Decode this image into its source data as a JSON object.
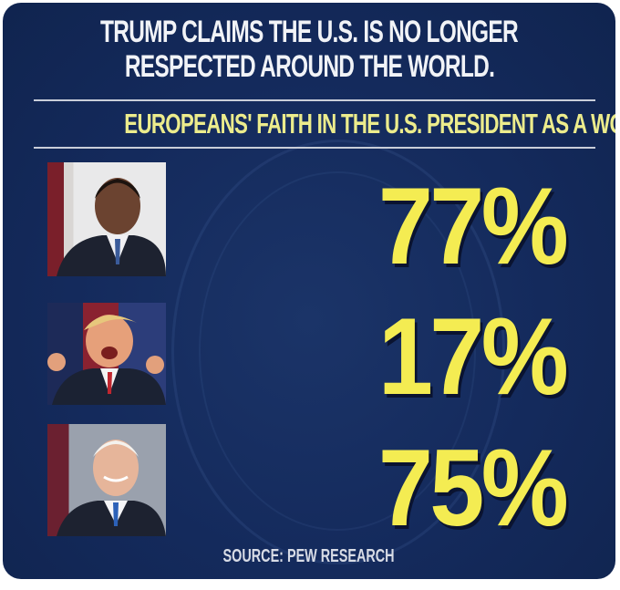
{
  "header": {
    "title_line1": "TRUMP CLAIMS THE U.S. IS NO LONGER",
    "title_line2": "RESPECTED AROUND THE WORLD.",
    "subtitle": "EUROPEANS' FAITH IN THE U.S. PRESIDENT AS A WORLD LEADER"
  },
  "rows": [
    {
      "photo": "obama-portrait",
      "value": "77%"
    },
    {
      "photo": "trump-portrait",
      "value": "17%"
    },
    {
      "photo": "biden-portrait",
      "value": "75%"
    }
  ],
  "footer": {
    "source": "SOURCE: PEW RESEARCH"
  },
  "colors": {
    "background": "#142a5c",
    "accent": "#f4ec52",
    "subtitle": "#ecec8c"
  }
}
